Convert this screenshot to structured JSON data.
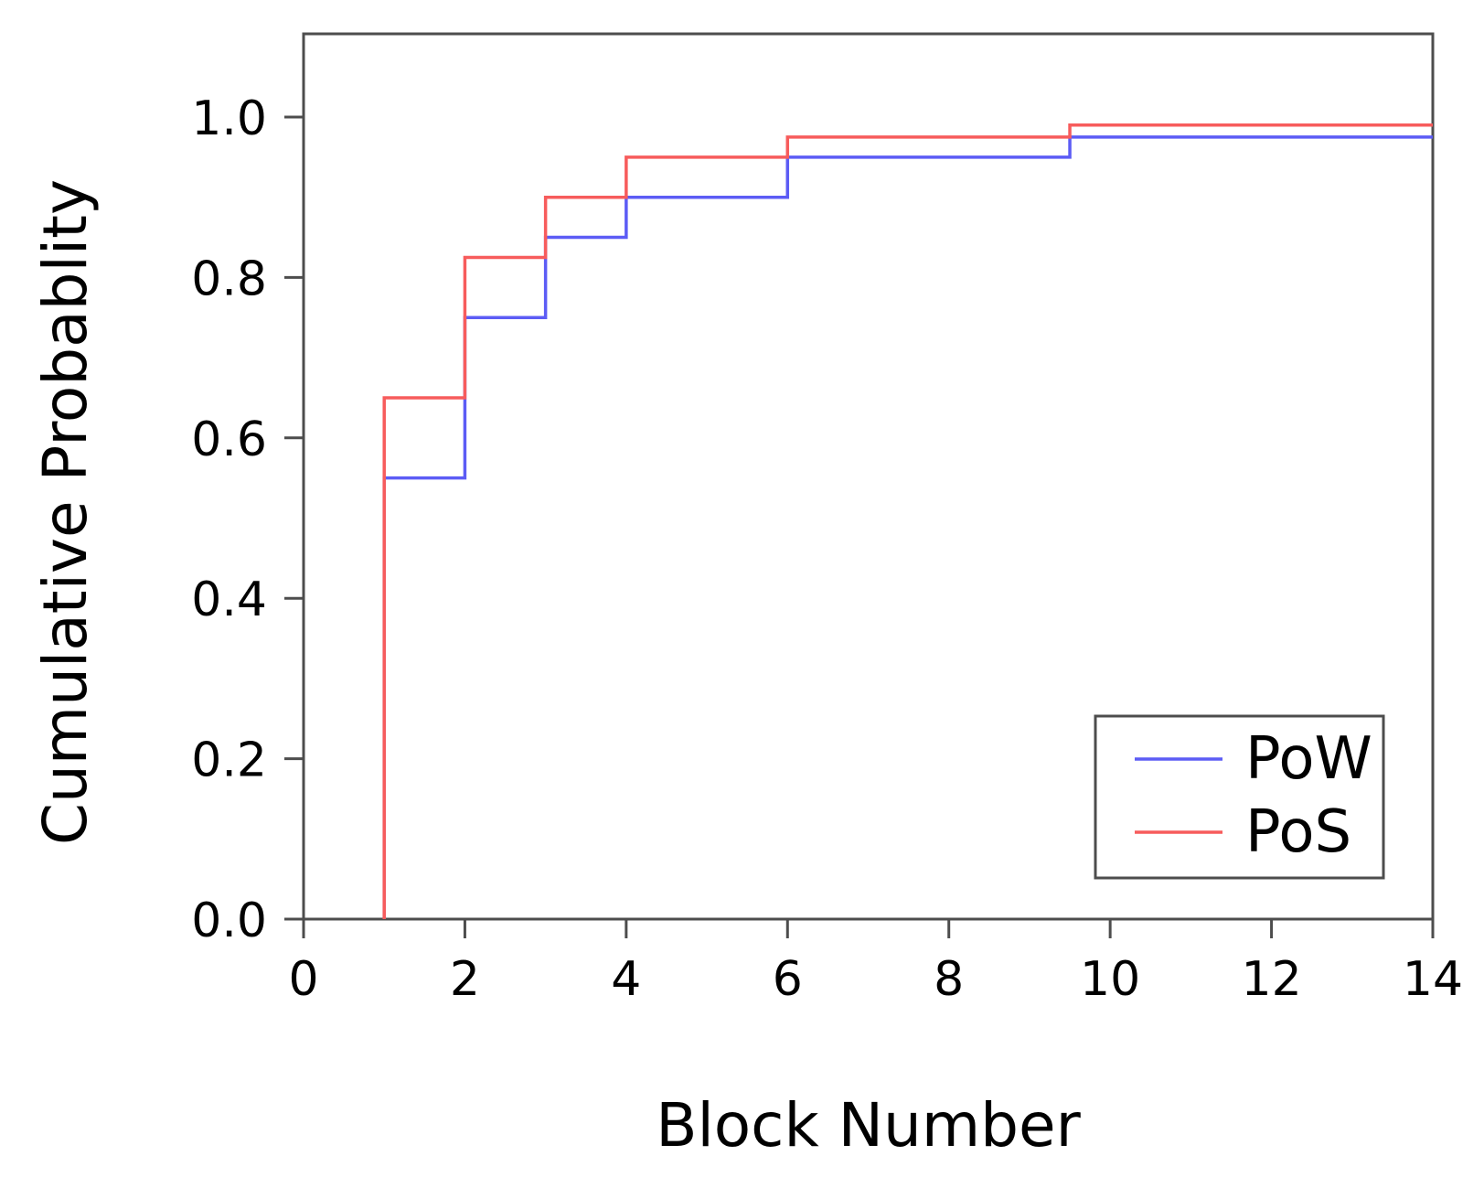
{
  "chart_data": {
    "type": "line",
    "subtype": "step-cdf",
    "title": "",
    "xlabel": "Block Number",
    "ylabel": "Cumulative Probablity",
    "xlim": [
      0,
      14
    ],
    "ylim": [
      0,
      1.1
    ],
    "grid": false,
    "background": "#ffffff",
    "axis_color": "#4d4d4d",
    "text_color": "#000000",
    "x_ticks": {
      "values": [
        0,
        2,
        4,
        6,
        8,
        10,
        12,
        14
      ],
      "labels": [
        "0",
        "2",
        "4",
        "6",
        "8",
        "10",
        "12",
        "14"
      ]
    },
    "y_ticks": {
      "values": [
        0,
        0.2,
        0.4,
        0.6,
        0.8,
        1.0
      ],
      "labels": [
        "0.0",
        "0.2",
        "0.4",
        "0.6",
        "0.8",
        "1.0"
      ]
    },
    "legend": {
      "position": "lower right",
      "entries": [
        "PoW",
        "PoS"
      ]
    },
    "series": [
      {
        "name": "PoW",
        "color": "#5c5cf5",
        "start_p": 0,
        "end_x": 14,
        "steps": [
          {
            "x": 1,
            "p": 0.55
          },
          {
            "x": 2,
            "p": 0.75
          },
          {
            "x": 3,
            "p": 0.85
          },
          {
            "x": 4,
            "p": 0.9
          },
          {
            "x": 6,
            "p": 0.95
          },
          {
            "x": 9.5,
            "p": 0.975
          }
        ]
      },
      {
        "name": "PoS",
        "color": "#f75c5c",
        "start_p": 0,
        "end_x": 14,
        "steps": [
          {
            "x": 1,
            "p": 0.65
          },
          {
            "x": 2,
            "p": 0.825
          },
          {
            "x": 3,
            "p": 0.9
          },
          {
            "x": 4,
            "p": 0.95
          },
          {
            "x": 6,
            "p": 0.975
          },
          {
            "x": 9.5,
            "p": 0.99
          }
        ]
      }
    ]
  }
}
